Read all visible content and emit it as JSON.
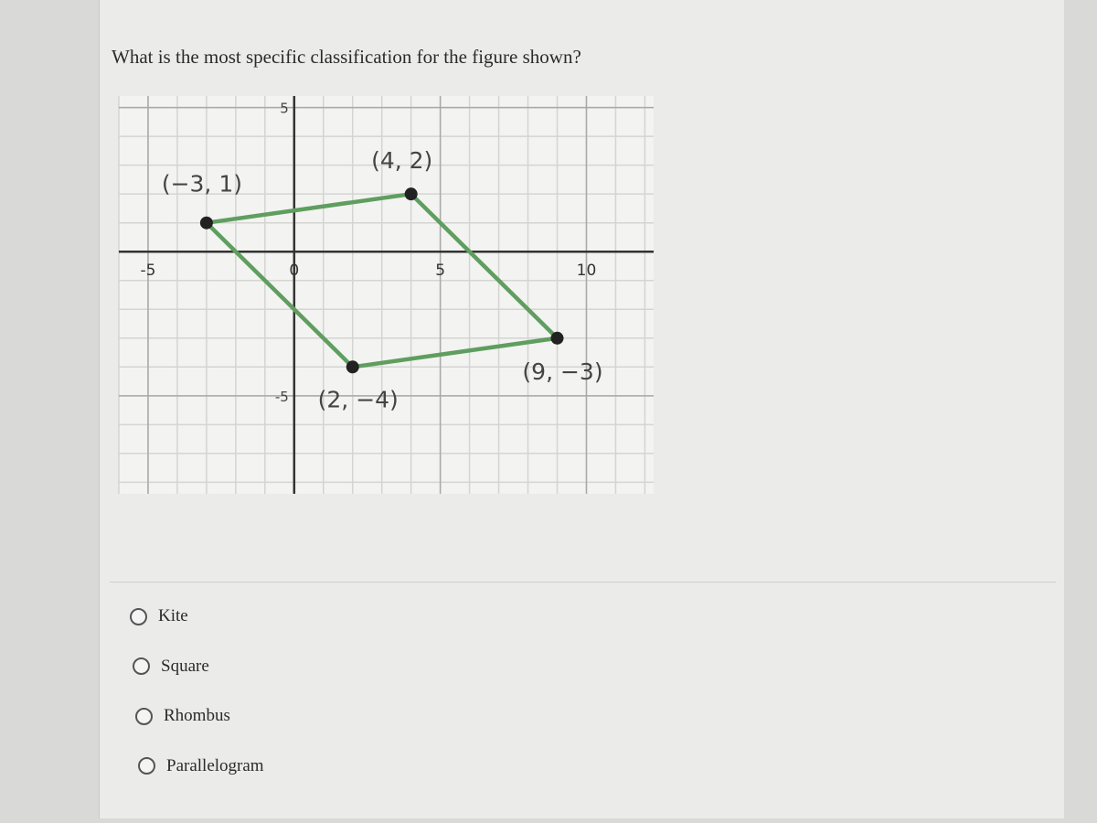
{
  "question": "What is the most specific classification for the figure shown?",
  "graph": {
    "xlim": [
      -6,
      12.3
    ],
    "ylim": [
      -8.4,
      5.4
    ],
    "xticks": [
      -5,
      0,
      5,
      10
    ],
    "yticks": [
      -5,
      5
    ],
    "grid_step": 1,
    "line_color": "#5f9e5f",
    "point_color": "#222222",
    "points": [
      {
        "x": -3,
        "y": 1,
        "label": "(−3, 1)"
      },
      {
        "x": 4,
        "y": 2,
        "label": "(4, 2)"
      },
      {
        "x": 9,
        "y": -3,
        "label": "(9, −3)"
      },
      {
        "x": 2,
        "y": -4,
        "label": "(2, −4)"
      }
    ]
  },
  "options": [
    "Kite",
    "Square",
    "Rhombus",
    "Parallelogram"
  ]
}
